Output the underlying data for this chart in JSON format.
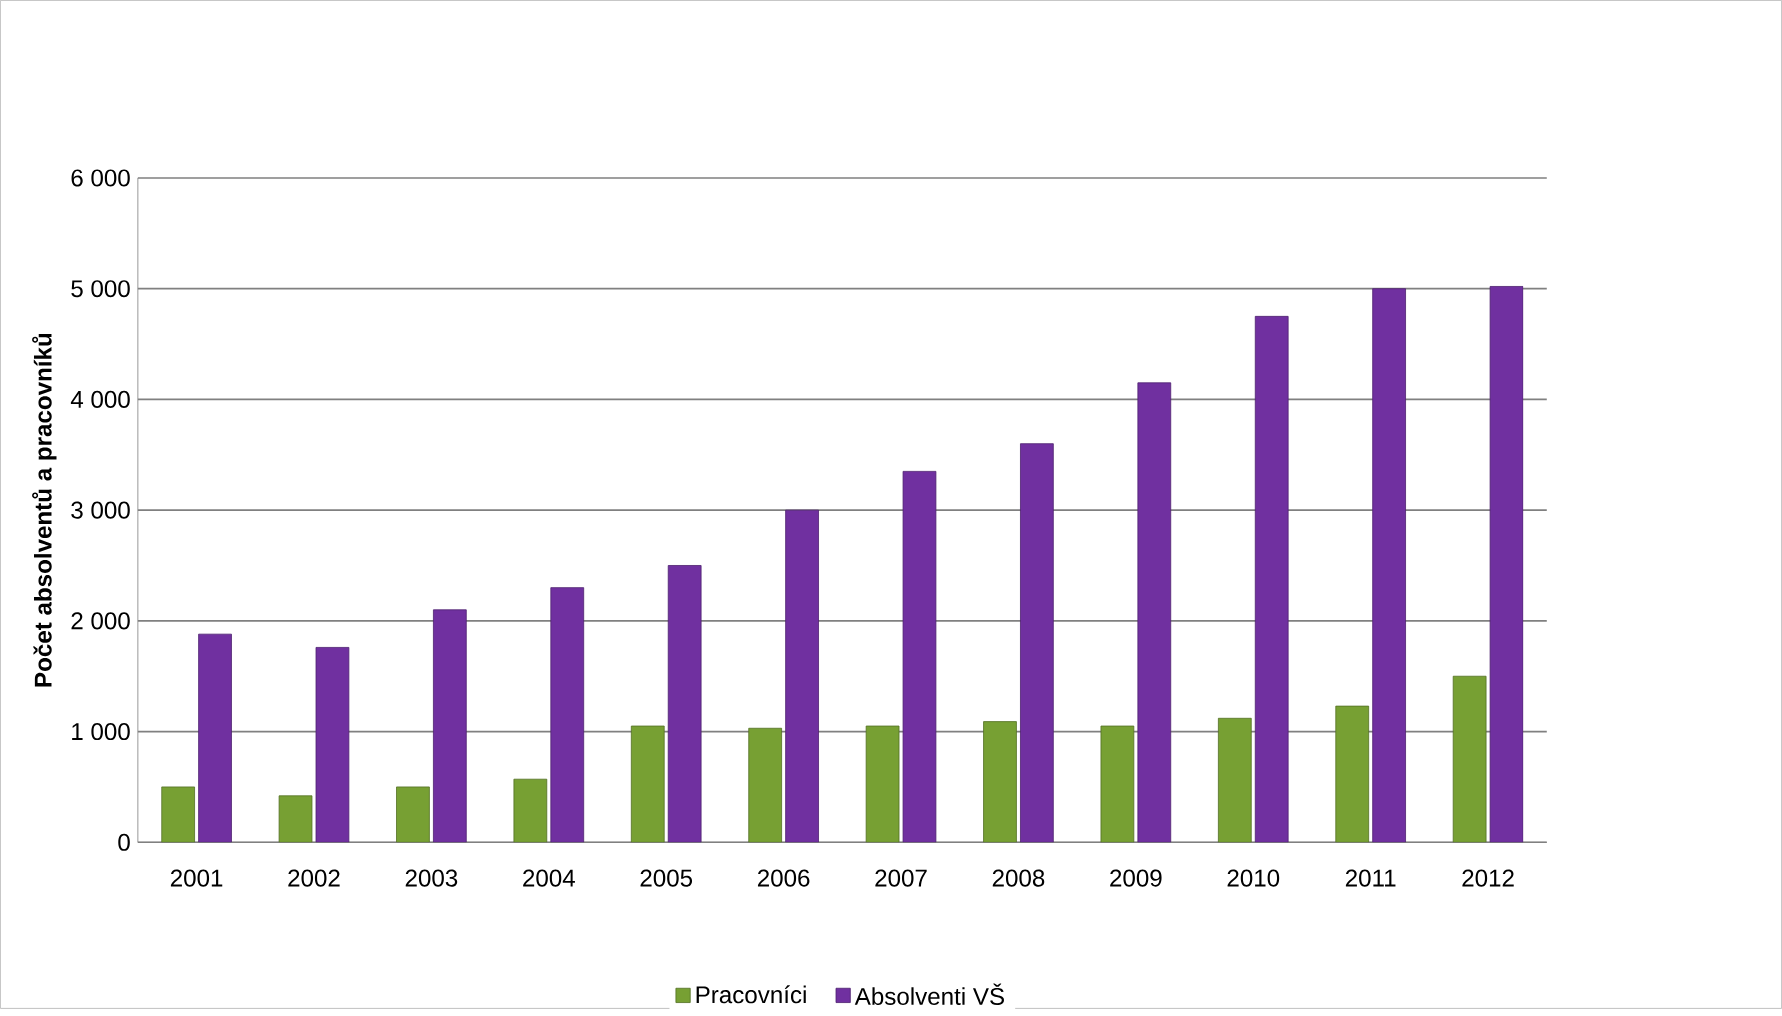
{
  "chart_data": {
    "type": "bar",
    "ylabel": "Počet absolventů  a pracovníků",
    "categories": [
      "2001",
      "2002",
      "2003",
      "2004",
      "2005",
      "2006",
      "2007",
      "2008",
      "2009",
      "2010",
      "2011",
      "2012"
    ],
    "series": [
      {
        "name": "Pracovníci",
        "color": "#77a033",
        "values": [
          500,
          420,
          500,
          570,
          1050,
          1030,
          1050,
          1090,
          1050,
          1120,
          1230,
          1500
        ]
      },
      {
        "name": "Absolventi VŠ",
        "color": "#7030a0",
        "values": [
          1880,
          1760,
          2100,
          2300,
          2500,
          3000,
          3350,
          3600,
          4150,
          4750,
          5000,
          5020
        ]
      }
    ],
    "ylim": [
      0,
      6000
    ],
    "yticks": [
      0,
      {
        "value": 1000,
        "label": "1 000"
      },
      {
        "value": 2000,
        "label": "2 000"
      },
      {
        "value": 3000,
        "label": "3 000"
      },
      {
        "value": 4000,
        "label": "4 000"
      },
      {
        "value": 5000,
        "label": "5 000"
      },
      {
        "value": 6000,
        "label": "6 000"
      }
    ],
    "grid": "y",
    "legend": "bottom"
  }
}
